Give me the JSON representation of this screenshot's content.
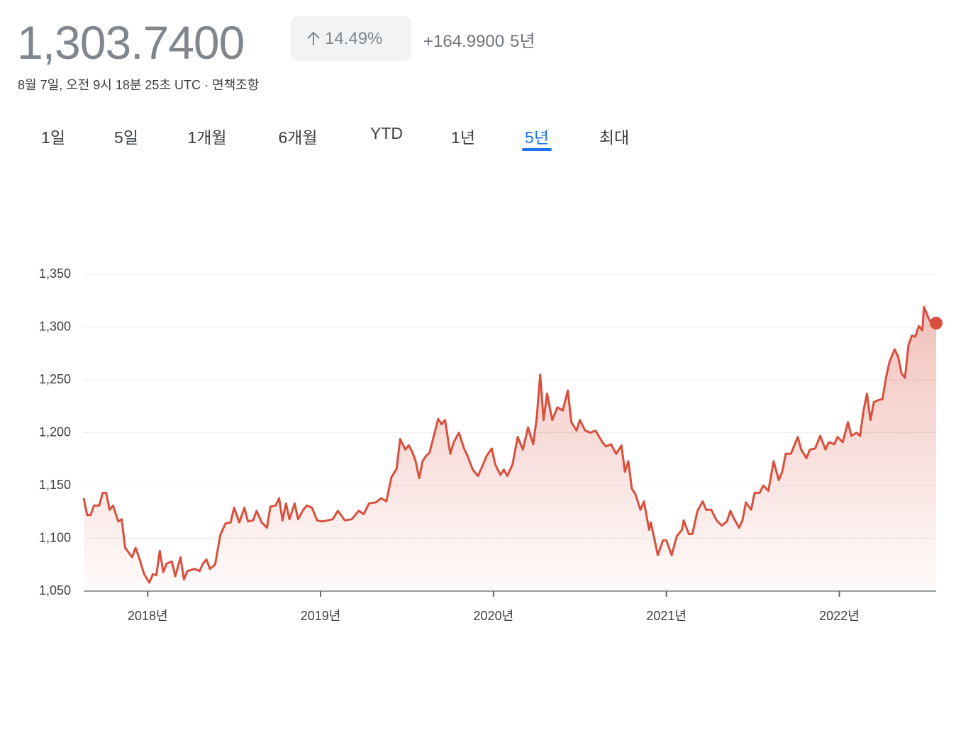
{
  "header": {
    "price": "1,303.7400",
    "change_percent": "14.49%",
    "change_value": "+164.9900",
    "period": "5년",
    "timestamp": "8월 7일, 오전 9시 18분 25초 UTC",
    "separator": "·",
    "disclaimer": "면책조항"
  },
  "tabs": [
    "1일",
    "5일",
    "1개월",
    "6개월",
    "YTD",
    "1년",
    "5년",
    "최대"
  ],
  "active_tab": 6,
  "chart_data": {
    "type": "area-line",
    "color": "#d94f3d",
    "grid": true,
    "xlim": [
      2017.63,
      2022.56
    ],
    "xticks": [
      {
        "value": 2018,
        "label": "2018년"
      },
      {
        "value": 2019,
        "label": "2019년"
      },
      {
        "value": 2020,
        "label": "2020년"
      },
      {
        "value": 2021,
        "label": "2021년"
      },
      {
        "value": 2022,
        "label": "2022년"
      }
    ],
    "ylim": [
      1050,
      1350
    ],
    "yticks": [
      {
        "value": 1050,
        "label": "1,050"
      },
      {
        "value": 1100,
        "label": "1,100"
      },
      {
        "value": 1150,
        "label": "1,150"
      },
      {
        "value": 1200,
        "label": "1,200"
      },
      {
        "value": 1250,
        "label": "1,250"
      },
      {
        "value": 1300,
        "label": "1,300"
      },
      {
        "value": 1350,
        "label": "1,350"
      }
    ],
    "x": [
      2017.63,
      2017.65,
      2017.67,
      2017.69,
      2017.72,
      2017.74,
      2017.76,
      2017.78,
      2017.8,
      2017.83,
      2017.85,
      2017.87,
      2017.91,
      2017.93,
      2017.95,
      2017.98,
      2018.01,
      2018.03,
      2018.05,
      2018.07,
      2018.09,
      2018.11,
      2018.14,
      2018.16,
      2018.19,
      2018.21,
      2018.23,
      2018.27,
      2018.3,
      2018.32,
      2018.34,
      2018.36,
      2018.39,
      2018.42,
      2018.45,
      2018.48,
      2018.5,
      2018.53,
      2018.56,
      2018.58,
      2018.61,
      2018.63,
      2018.66,
      2018.69,
      2018.71,
      2018.74,
      2018.76,
      2018.78,
      2018.8,
      2018.82,
      2018.85,
      2018.87,
      2018.9,
      2018.92,
      2018.95,
      2018.98,
      2019.01,
      2019.07,
      2019.1,
      2019.14,
      2019.18,
      2019.22,
      2019.25,
      2019.28,
      2019.32,
      2019.35,
      2019.38,
      2019.41,
      2019.44,
      2019.46,
      2019.49,
      2019.51,
      2019.53,
      2019.55,
      2019.57,
      2019.59,
      2019.61,
      2019.63,
      2019.66,
      2019.68,
      2019.7,
      2019.72,
      2019.75,
      2019.77,
      2019.8,
      2019.83,
      2019.85,
      2019.88,
      2019.91,
      2019.94,
      2019.96,
      2019.99,
      2020.01,
      2020.04,
      2020.06,
      2020.08,
      2020.11,
      2020.14,
      2020.17,
      2020.2,
      2020.23,
      2020.25,
      2020.27,
      2020.29,
      2020.31,
      2020.34,
      2020.37,
      2020.4,
      2020.43,
      2020.45,
      2020.48,
      2020.5,
      2020.53,
      2020.56,
      2020.59,
      2020.63,
      2020.65,
      2020.68,
      2020.71,
      2020.74,
      2020.76,
      2020.78,
      2020.8,
      2020.82,
      2020.85,
      2020.87,
      2020.9,
      2020.91,
      2020.93,
      2020.95,
      2020.98,
      2021.0,
      2021.03,
      2021.06,
      2021.09,
      2021.1,
      2021.13,
      2021.15,
      2021.18,
      2021.21,
      2021.23,
      2021.26,
      2021.29,
      2021.32,
      2021.35,
      2021.37,
      2021.39,
      2021.42,
      2021.44,
      2021.46,
      2021.49,
      2021.51,
      2021.54,
      2021.56,
      2021.59,
      2021.62,
      2021.65,
      2021.67,
      2021.69,
      2021.72,
      2021.76,
      2021.78,
      2021.81,
      2021.83,
      2021.86,
      2021.89,
      2021.92,
      2021.94,
      2021.97,
      2021.99,
      2022.02,
      2022.05,
      2022.07,
      2022.1,
      2022.12,
      2022.14,
      2022.16,
      2022.18,
      2022.2,
      2022.23,
      2022.25,
      2022.27,
      2022.29,
      2022.32,
      2022.34,
      2022.36,
      2022.38,
      2022.4,
      2022.42,
      2022.44,
      2022.46,
      2022.48,
      2022.49,
      2022.52,
      2022.54,
      2022.56
    ],
    "values": [
      1138,
      1122,
      1122,
      1131,
      1131,
      1143,
      1143,
      1127,
      1131,
      1116,
      1118,
      1091,
      1082,
      1091,
      1082,
      1066,
      1058,
      1066,
      1065,
      1088,
      1068,
      1076,
      1078,
      1064,
      1082,
      1061,
      1069,
      1071,
      1069,
      1076,
      1080,
      1071,
      1075,
      1103,
      1114,
      1115,
      1129,
      1115,
      1129,
      1116,
      1117,
      1126,
      1115,
      1110,
      1130,
      1131,
      1138,
      1117,
      1133,
      1118,
      1133,
      1118,
      1127,
      1131,
      1129,
      1117,
      1116,
      1118,
      1126,
      1117,
      1118,
      1126,
      1123,
      1133,
      1134,
      1138,
      1135,
      1158,
      1166,
      1194,
      1184,
      1188,
      1182,
      1173,
      1157,
      1173,
      1178,
      1181,
      1200,
      1213,
      1208,
      1212,
      1180,
      1191,
      1200,
      1185,
      1178,
      1165,
      1159,
      1170,
      1178,
      1185,
      1170,
      1160,
      1165,
      1159,
      1170,
      1196,
      1184,
      1205,
      1189,
      1214,
      1255,
      1212,
      1237,
      1212,
      1224,
      1221,
      1240,
      1210,
      1202,
      1212,
      1202,
      1200,
      1202,
      1191,
      1187,
      1189,
      1180,
      1188,
      1163,
      1173,
      1147,
      1142,
      1127,
      1135,
      1108,
      1115,
      1100,
      1084,
      1098,
      1098,
      1084,
      1102,
      1108,
      1117,
      1104,
      1104,
      1126,
      1135,
      1127,
      1127,
      1117,
      1112,
      1116,
      1126,
      1119,
      1110,
      1117,
      1134,
      1127,
      1143,
      1143,
      1150,
      1145,
      1173,
      1155,
      1163,
      1180,
      1180,
      1196,
      1184,
      1176,
      1184,
      1185,
      1197,
      1184,
      1191,
      1189,
      1196,
      1191,
      1210,
      1197,
      1200,
      1197,
      1221,
      1237,
      1212,
      1229,
      1231,
      1232,
      1252,
      1267,
      1279,
      1272,
      1256,
      1252,
      1283,
      1292,
      1291,
      1301,
      1297,
      1319,
      1307,
      1303,
      1303.74
    ]
  }
}
